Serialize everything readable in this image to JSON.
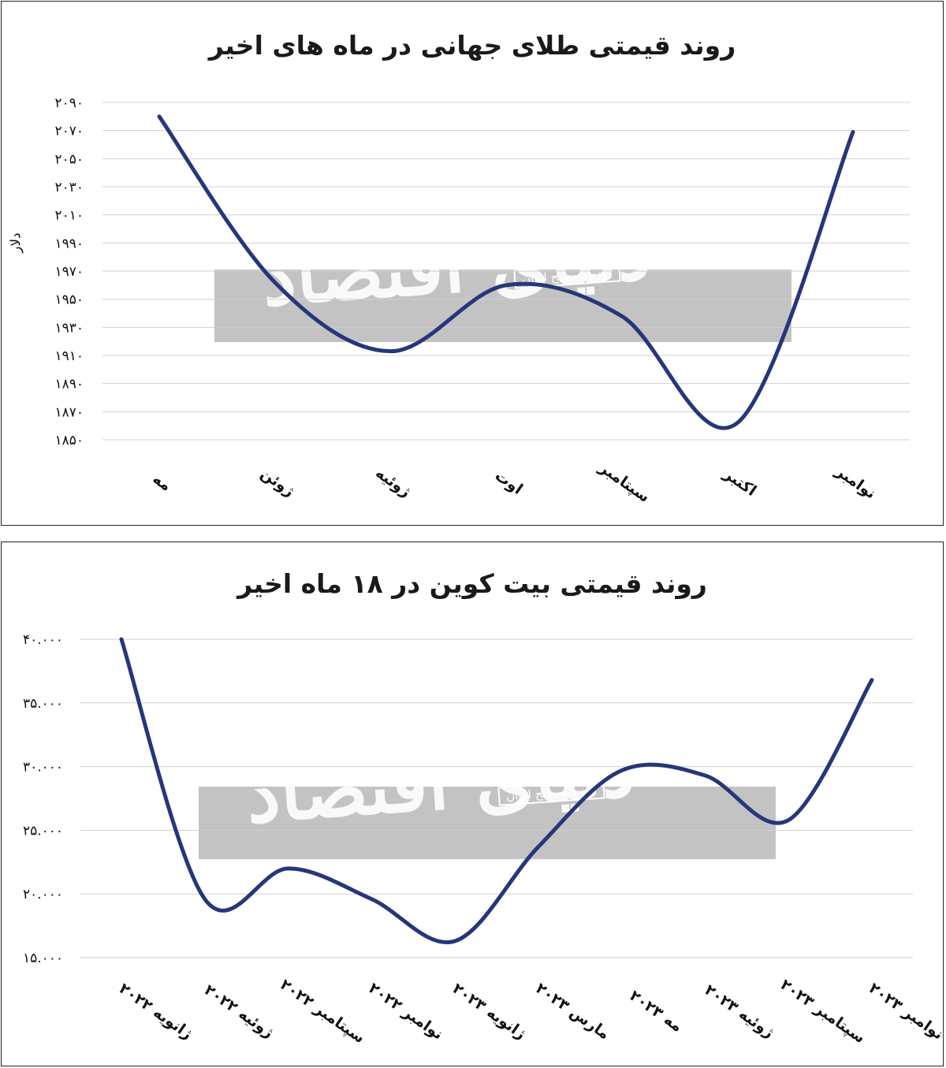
{
  "chart_data": [
    {
      "type": "line",
      "title": "روند قیمتی طلای جهانی در ماه های اخیر",
      "ylabel": "دلار",
      "ylim": [
        1850,
        2090
      ],
      "y_ticks": [
        "۱۸۵۰",
        "۱۸۷۰",
        "۱۸۹۰",
        "۱۹۱۰",
        "۱۹۳۰",
        "۱۹۵۰",
        "۱۹۷۰",
        "۱۹۹۰",
        "۲۰۱۰",
        "۲۰۳۰",
        "۲۰۵۰",
        "۲۰۷۰",
        "۲۰۹۰"
      ],
      "categories": [
        "مه",
        "ژوئن",
        "ژوئیه",
        "اوت",
        "سپتامبر",
        "اکتبر",
        "نوامبر"
      ],
      "series": [
        {
          "values": [
            2080,
            1962,
            1913,
            1960,
            1938,
            1862,
            2069
          ]
        }
      ],
      "smooth": true,
      "grid": true,
      "color": "#27367a"
    },
    {
      "type": "line",
      "title": "روند قیمتی بیت کوین در ۱۸ ماه  اخیر",
      "ylim": [
        15000,
        40000
      ],
      "y_ticks": [
        "۱۵.۰۰۰",
        "۲۰.۰۰۰",
        "۲۵.۰۰۰",
        "۳۰.۰۰۰",
        "۳۵.۰۰۰",
        "۴۰.۰۰۰"
      ],
      "categories": [
        "ژانویه ۲۰۲۲",
        "ژوئیه ۲۰۲۲",
        "سپتامبر ۲۰۲۲",
        "نوامبر ۲۰۲۲",
        "ژانویه ۲۰۲۳",
        "مارس ۲۰۲۳",
        "مه ۲۰۲۳",
        "ژوئیه ۲۰۲۳",
        "سپتامبر ۲۰۲۳",
        "نوامبر ۲۰۲۳"
      ],
      "series": [
        {
          "values": [
            40000,
            19600,
            22000,
            19600,
            16300,
            23700,
            29700,
            29300,
            25800,
            36800
          ]
        }
      ],
      "smooth": true,
      "grid": true,
      "color": "#27367a"
    }
  ],
  "watermark": {
    "brand": "دنیای اقتصاد",
    "subtitle": "روزنامه صبح ایران"
  }
}
